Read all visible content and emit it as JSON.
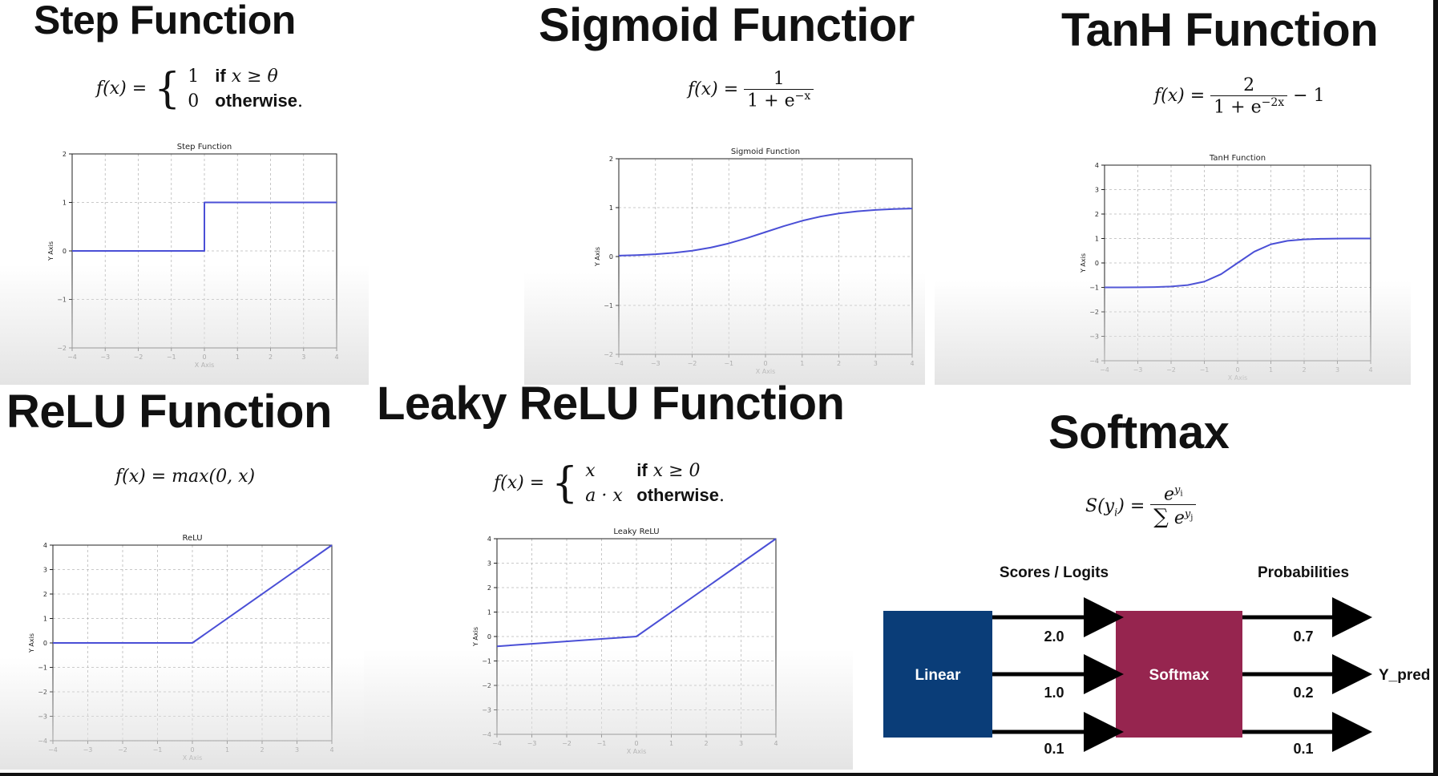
{
  "panels": {
    "step": {
      "title": "Step Function",
      "formula": {
        "lhs": "f(x) =",
        "case1_val": "1",
        "case1_cond_word": "if",
        "case1_cond": "x ≥ θ",
        "case2_val": "0",
        "case2_cond": "otherwise",
        "case2_end": "."
      }
    },
    "sigmoid": {
      "title": "Sigmoid Functior",
      "formula": {
        "lhs": "f(x) =",
        "num": "1",
        "den": "1 + e",
        "den_exp": "−x"
      }
    },
    "tanh": {
      "title": "TanH Function",
      "formula": {
        "lhs": "f(x) =",
        "num": "2",
        "den": "1 + e",
        "den_exp": "−2x",
        "tail": "− 1"
      }
    },
    "relu": {
      "title": "ReLU Function",
      "formula": {
        "text": "f(x) = max(0, x)"
      }
    },
    "leaky": {
      "title": "Leaky ReLU Function",
      "formula": {
        "lhs": "f(x) =",
        "case1_val": "x",
        "case1_cond_word": "if",
        "case1_cond": "x ≥ 0",
        "case2_val": "a · x",
        "case2_cond": "otherwise",
        "case2_end": "."
      }
    },
    "softmax": {
      "title": "Softmax",
      "formula": {
        "lhs": "S(y",
        "lhs_sub": "i",
        "lhs_end": ") =",
        "num": "e",
        "num_exp": "y",
        "num_exp_sub": "i",
        "den_sigma": "∑",
        "den": "e",
        "den_exp": "y",
        "den_exp_sub": "j"
      }
    }
  },
  "chart_data": [
    {
      "id": "step",
      "type": "line",
      "title": "Step Function",
      "xlabel": "X Axis",
      "ylabel": "Y Axis",
      "xlim": [
        -4,
        4
      ],
      "ylim": [
        -2,
        2
      ],
      "xticks": [
        -4,
        -3,
        -2,
        -1,
        0,
        1,
        2,
        3,
        4
      ],
      "yticks": [
        -2,
        -1,
        0,
        1,
        2
      ],
      "grid": true,
      "series": [
        {
          "x": [
            -4,
            0,
            0,
            4
          ],
          "y": [
            0,
            0,
            1,
            1
          ]
        }
      ]
    },
    {
      "id": "sigmoid",
      "type": "line",
      "title": "Sigmoid Function",
      "xlabel": "X Axis",
      "ylabel": "Y Axis",
      "xlim": [
        -4,
        4
      ],
      "ylim": [
        -2,
        2
      ],
      "xticks": [
        -4,
        -3,
        -2,
        -1,
        0,
        1,
        2,
        3,
        4
      ],
      "yticks": [
        -2,
        -1,
        0,
        1,
        2
      ],
      "grid": true,
      "series": [
        {
          "x": [
            -4,
            -3.5,
            -3,
            -2.5,
            -2,
            -1.5,
            -1,
            -0.5,
            0,
            0.5,
            1,
            1.5,
            2,
            2.5,
            3,
            3.5,
            4
          ],
          "y": [
            0.018,
            0.029,
            0.047,
            0.076,
            0.119,
            0.182,
            0.269,
            0.378,
            0.5,
            0.622,
            0.731,
            0.818,
            0.881,
            0.924,
            0.953,
            0.971,
            0.982
          ]
        }
      ]
    },
    {
      "id": "tanh",
      "type": "line",
      "title": "TanH Function",
      "xlabel": "X Axis",
      "ylabel": "Y Axis",
      "xlim": [
        -4,
        4
      ],
      "ylim": [
        -4,
        4
      ],
      "xticks": [
        -4,
        -3,
        -2,
        -1,
        0,
        1,
        2,
        3,
        4
      ],
      "yticks": [
        -4,
        -3,
        -2,
        -1,
        0,
        1,
        2,
        3,
        4
      ],
      "grid": true,
      "series": [
        {
          "x": [
            -4,
            -3.5,
            -3,
            -2.5,
            -2,
            -1.5,
            -1,
            -0.5,
            0,
            0.5,
            1,
            1.5,
            2,
            2.5,
            3,
            3.5,
            4
          ],
          "y": [
            -0.999,
            -0.998,
            -0.995,
            -0.987,
            -0.964,
            -0.905,
            -0.762,
            -0.462,
            0,
            0.462,
            0.762,
            0.905,
            0.964,
            0.987,
            0.995,
            0.998,
            0.999
          ]
        }
      ]
    },
    {
      "id": "relu",
      "type": "line",
      "title": "ReLU",
      "xlabel": "X Axis",
      "ylabel": "Y Axis",
      "xlim": [
        -4,
        4
      ],
      "ylim": [
        -4,
        4
      ],
      "xticks": [
        -4,
        -3,
        -2,
        -1,
        0,
        1,
        2,
        3,
        4
      ],
      "yticks": [
        -4,
        -3,
        -2,
        -1,
        0,
        1,
        2,
        3,
        4
      ],
      "grid": true,
      "series": [
        {
          "x": [
            -4,
            0,
            4
          ],
          "y": [
            0,
            0,
            4
          ]
        }
      ]
    },
    {
      "id": "leaky",
      "type": "line",
      "title": "Leaky ReLU",
      "xlabel": "X Axis",
      "ylabel": "Y Axis",
      "xlim": [
        -4,
        4
      ],
      "ylim": [
        -4,
        4
      ],
      "xticks": [
        -4,
        -3,
        -2,
        -1,
        0,
        1,
        2,
        3,
        4
      ],
      "yticks": [
        -4,
        -3,
        -2,
        -1,
        0,
        1,
        2,
        3,
        4
      ],
      "grid": true,
      "series": [
        {
          "x": [
            -4,
            0,
            4
          ],
          "y": [
            -0.4,
            0,
            4
          ]
        }
      ]
    }
  ],
  "softmax_diagram": {
    "header_scores": "Scores / Logits",
    "header_probs": "Probabilities",
    "linear_label": "Linear",
    "softmax_label": "Softmax",
    "output_label": "Y_pred",
    "scores": [
      "2.0",
      "1.0",
      "0.1"
    ],
    "probabilities": [
      "0.7",
      "0.2",
      "0.1"
    ],
    "colors": {
      "linear": "#0a3d78",
      "softmax": "#96254f"
    }
  },
  "colors": {
    "line": "#4a4fd6",
    "grid": "#b8b8b8"
  }
}
